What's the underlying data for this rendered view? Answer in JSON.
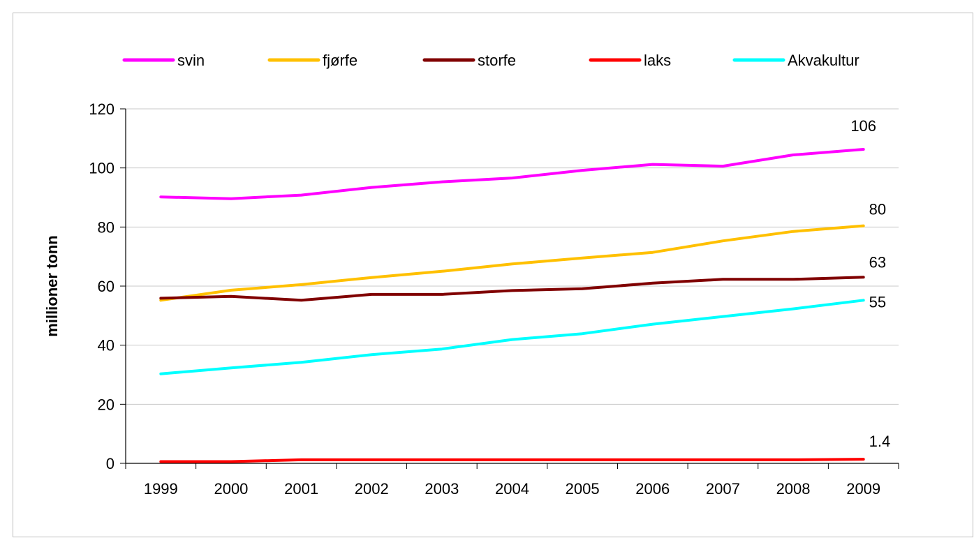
{
  "chart_data": {
    "type": "line",
    "title": "",
    "xlabel": "",
    "ylabel": "millioner tonn",
    "ylim": [
      0,
      120
    ],
    "yticks": [
      0,
      20,
      40,
      60,
      80,
      100,
      120
    ],
    "grid": "horizontal",
    "legend_position": "top",
    "x": [
      "1999",
      "2000",
      "2001",
      "2002",
      "2003",
      "2004",
      "2005",
      "2006",
      "2007",
      "2008",
      "2009"
    ],
    "series": [
      {
        "name": "svin",
        "color": "#ff00ff",
        "values": [
          90.2,
          89.6,
          90.8,
          93.4,
          95.3,
          96.6,
          99.2,
          101.2,
          100.6,
          104.4,
          106.3
        ],
        "end_label": "106"
      },
      {
        "name": "fjørfe",
        "color": "#ffc000",
        "values": [
          55.2,
          58.6,
          60.5,
          62.9,
          65.0,
          67.5,
          69.5,
          71.4,
          75.3,
          78.5,
          80.4
        ],
        "end_label": "80"
      },
      {
        "name": "storfe",
        "color": "#800000",
        "values": [
          55.9,
          56.5,
          55.2,
          57.2,
          57.2,
          58.5,
          59.1,
          61.0,
          62.3,
          62.3,
          63.0
        ],
        "end_label": "63"
      },
      {
        "name": "laks",
        "color": "#ff0000",
        "values": [
          0.6,
          0.6,
          1.2,
          1.2,
          1.2,
          1.2,
          1.2,
          1.2,
          1.2,
          1.2,
          1.4
        ],
        "end_label": "1.4"
      },
      {
        "name": "Akvakultur",
        "color": "#00ffff",
        "values": [
          30.3,
          32.3,
          34.2,
          36.8,
          38.7,
          41.9,
          43.9,
          47.1,
          49.7,
          52.3,
          55.2
        ],
        "end_label": "55"
      }
    ]
  }
}
